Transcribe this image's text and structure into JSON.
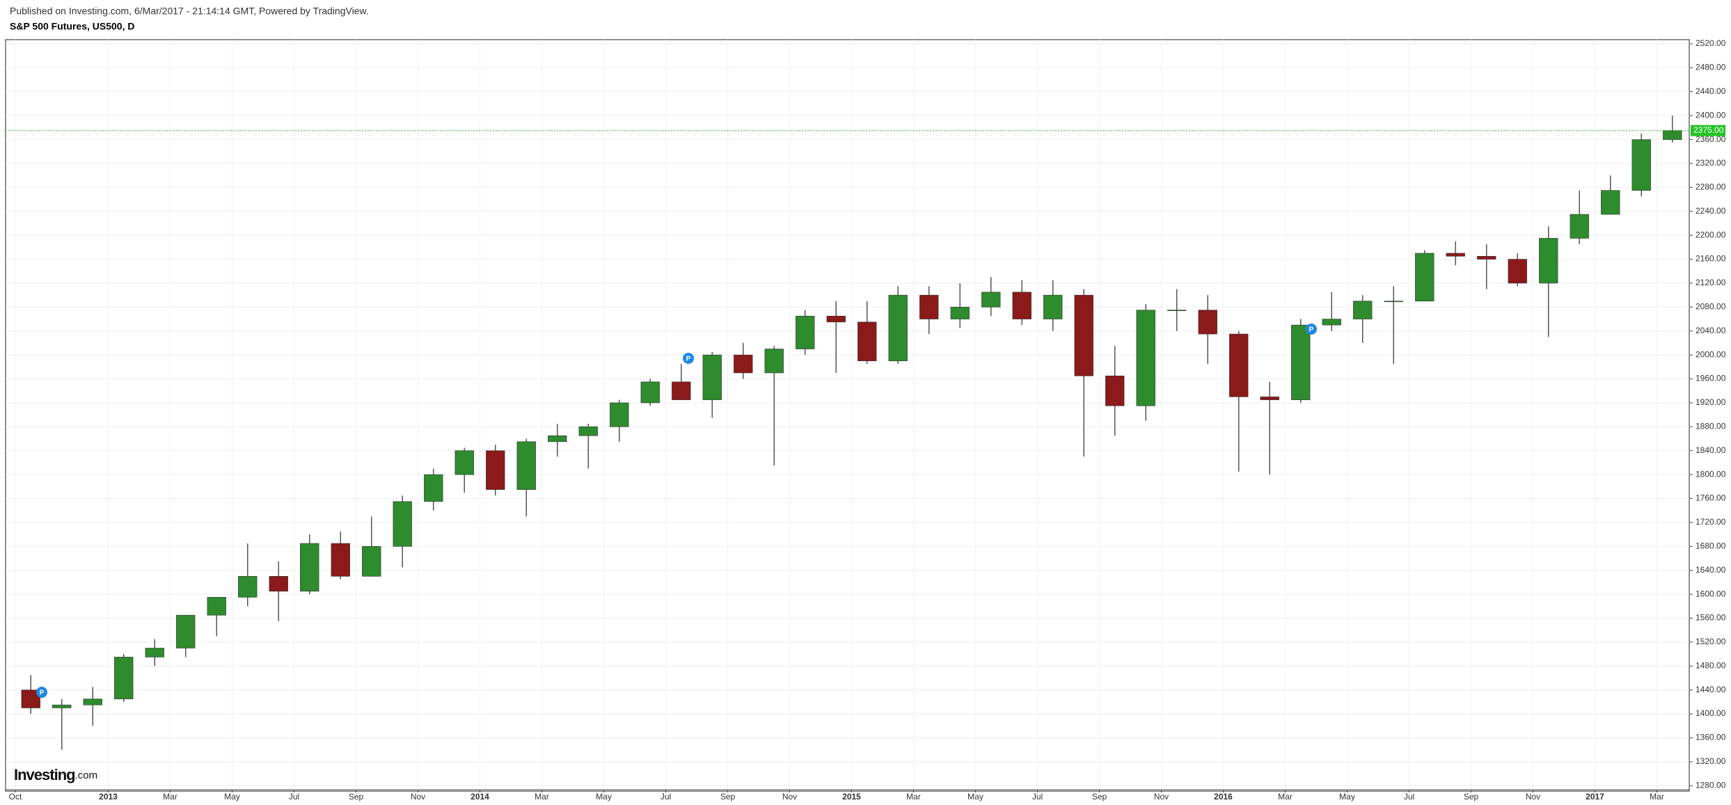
{
  "chart_data": {
    "type": "candlestick",
    "subtitle": "Published on Investing.com, 6/Mar/2017 - 21:14:14 GMT, Powered by TradingView.",
    "title": "S&P 500 Futures, US500, D",
    "watermark": {
      "brand": "Investing",
      "suffix": ".com"
    },
    "x": [
      "2012-10",
      "2012-11",
      "2012-12",
      "2013-01",
      "2013-02",
      "2013-03",
      "2013-04",
      "2013-05",
      "2013-06",
      "2013-07",
      "2013-08",
      "2013-09",
      "2013-10",
      "2013-11",
      "2013-12",
      "2014-01",
      "2014-02",
      "2014-03",
      "2014-04",
      "2014-05",
      "2014-06",
      "2014-07",
      "2014-08",
      "2014-09",
      "2014-10",
      "2014-11",
      "2014-12",
      "2015-01",
      "2015-02",
      "2015-03",
      "2015-04",
      "2015-05",
      "2015-06",
      "2015-07",
      "2015-08",
      "2015-09",
      "2015-10",
      "2015-11",
      "2015-12",
      "2016-01",
      "2016-02",
      "2016-03",
      "2016-04",
      "2016-05",
      "2016-06",
      "2016-07",
      "2016-08",
      "2016-09",
      "2016-10",
      "2016-11",
      "2016-12",
      "2017-01",
      "2017-02",
      "2017-03"
    ],
    "open": [
      1440,
      1410,
      1415,
      1425,
      1495,
      1510,
      1565,
      1595,
      1630,
      1605,
      1685,
      1630,
      1680,
      1755,
      1800,
      1840,
      1775,
      1855,
      1865,
      1880,
      1920,
      1955,
      1925,
      2000,
      1970,
      2010,
      2065,
      2055,
      1990,
      2100,
      2060,
      2080,
      2105,
      2060,
      2100,
      1965,
      1915,
      2075,
      2075,
      2035,
      1930,
      1925,
      2050,
      2060,
      2090,
      2090,
      2170,
      2165,
      2160,
      2120,
      2195,
      2235,
      2275,
      2360
    ],
    "high": [
      1465,
      1425,
      1445,
      1500,
      1525,
      1565,
      1595,
      1685,
      1655,
      1700,
      1705,
      1730,
      1765,
      1810,
      1845,
      1850,
      1860,
      1885,
      1885,
      1925,
      1960,
      1985,
      2005,
      2020,
      2015,
      2075,
      2090,
      2090,
      2115,
      2115,
      2120,
      2130,
      2125,
      2125,
      2110,
      2015,
      2085,
      2110,
      2100,
      2040,
      1955,
      2060,
      2105,
      2100,
      2115,
      2175,
      2190,
      2185,
      2170,
      2215,
      2275,
      2300,
      2370,
      2400
    ],
    "low": [
      1400,
      1340,
      1380,
      1420,
      1480,
      1495,
      1530,
      1580,
      1555,
      1600,
      1625,
      1630,
      1645,
      1740,
      1770,
      1765,
      1730,
      1830,
      1810,
      1855,
      1915,
      1925,
      1895,
      1960,
      1815,
      2000,
      1970,
      1985,
      1985,
      2035,
      2045,
      2065,
      2050,
      2040,
      1830,
      1865,
      1890,
      2040,
      1985,
      1805,
      1800,
      1920,
      2040,
      2020,
      1985,
      2090,
      2150,
      2110,
      2115,
      2030,
      2185,
      2235,
      2265,
      2355
    ],
    "close": [
      1410,
      1415,
      1425,
      1495,
      1510,
      1565,
      1595,
      1630,
      1605,
      1685,
      1630,
      1680,
      1755,
      1800,
      1840,
      1775,
      1855,
      1865,
      1880,
      1920,
      1955,
      1925,
      2000,
      1970,
      2010,
      2065,
      2055,
      1990,
      2100,
      2060,
      2080,
      2105,
      2060,
      2100,
      1965,
      1915,
      2075,
      2075,
      2035,
      1930,
      1925,
      2050,
      2060,
      2090,
      2090,
      2170,
      2165,
      2160,
      2120,
      2195,
      2235,
      2275,
      2360,
      2375
    ],
    "up_color": "#2e8b2e",
    "down_color": "#8b1a1a",
    "last_price": {
      "value": 2375,
      "label": "2375.00"
    },
    "last_price_color": "#22c322",
    "ylim": [
      1271,
      2527
    ],
    "yticks": [
      {
        "value": 1280,
        "label": "1280.00"
      },
      {
        "value": 1320,
        "label": "1320.00"
      },
      {
        "value": 1360,
        "label": "1360.00"
      },
      {
        "value": 1400,
        "label": "1400.00"
      },
      {
        "value": 1440,
        "label": "1440.00"
      },
      {
        "value": 1480,
        "label": "1480.00"
      },
      {
        "value": 1520,
        "label": "1520.00"
      },
      {
        "value": 1560,
        "label": "1560.00"
      },
      {
        "value": 1600,
        "label": "1600.00"
      },
      {
        "value": 1640,
        "label": "1640.00"
      },
      {
        "value": 1680,
        "label": "1680.00"
      },
      {
        "value": 1720,
        "label": "1720.00"
      },
      {
        "value": 1760,
        "label": "1760.00"
      },
      {
        "value": 1800,
        "label": "1800.00"
      },
      {
        "value": 1840,
        "label": "1840.00"
      },
      {
        "value": 1880,
        "label": "1880.00"
      },
      {
        "value": 1920,
        "label": "1920.00"
      },
      {
        "value": 1960,
        "label": "1960.00"
      },
      {
        "value": 2000,
        "label": "2000.00"
      },
      {
        "value": 2040,
        "label": "2040.00"
      },
      {
        "value": 2080,
        "label": "2080.00"
      },
      {
        "value": 2120,
        "label": "2120.00"
      },
      {
        "value": 2160,
        "label": "2160.00"
      },
      {
        "value": 2200,
        "label": "2200.00"
      },
      {
        "value": 2240,
        "label": "2240.00"
      },
      {
        "value": 2280,
        "label": "2280.00"
      },
      {
        "value": 2320,
        "label": "2320.00"
      },
      {
        "value": 2360,
        "label": "2360.00"
      },
      {
        "value": 2400,
        "label": "2400.00"
      },
      {
        "value": 2440,
        "label": "2440.00"
      },
      {
        "value": 2480,
        "label": "2480.00"
      },
      {
        "value": 2520,
        "label": "2520.00"
      }
    ],
    "xticks": [
      {
        "value": "2012-10",
        "label": "Oct"
      },
      {
        "value": "2013-01",
        "label": "2013"
      },
      {
        "value": "2013-03",
        "label": "Mar"
      },
      {
        "value": "2013-05",
        "label": "May"
      },
      {
        "value": "2013-07",
        "label": "Jul"
      },
      {
        "value": "2013-09",
        "label": "Sep"
      },
      {
        "value": "2013-11",
        "label": "Nov"
      },
      {
        "value": "2014-01",
        "label": "2014"
      },
      {
        "value": "2014-03",
        "label": "Mar"
      },
      {
        "value": "2014-05",
        "label": "May"
      },
      {
        "value": "2014-07",
        "label": "Jul"
      },
      {
        "value": "2014-09",
        "label": "Sep"
      },
      {
        "value": "2014-11",
        "label": "Nov"
      },
      {
        "value": "2015-01",
        "label": "2015"
      },
      {
        "value": "2015-03",
        "label": "Mar"
      },
      {
        "value": "2015-05",
        "label": "May"
      },
      {
        "value": "2015-07",
        "label": "Jul"
      },
      {
        "value": "2015-09",
        "label": "Sep"
      },
      {
        "value": "2015-11",
        "label": "Nov"
      },
      {
        "value": "2016-01",
        "label": "2016"
      },
      {
        "value": "2016-03",
        "label": "Mar"
      },
      {
        "value": "2016-05",
        "label": "May"
      },
      {
        "value": "2016-07",
        "label": "Jul"
      },
      {
        "value": "2016-09",
        "label": "Sep"
      },
      {
        "value": "2016-11",
        "label": "Nov"
      },
      {
        "value": "2017-01",
        "label": "2017"
      },
      {
        "value": "2017-03",
        "label": "Mar"
      }
    ],
    "grid": true
  }
}
